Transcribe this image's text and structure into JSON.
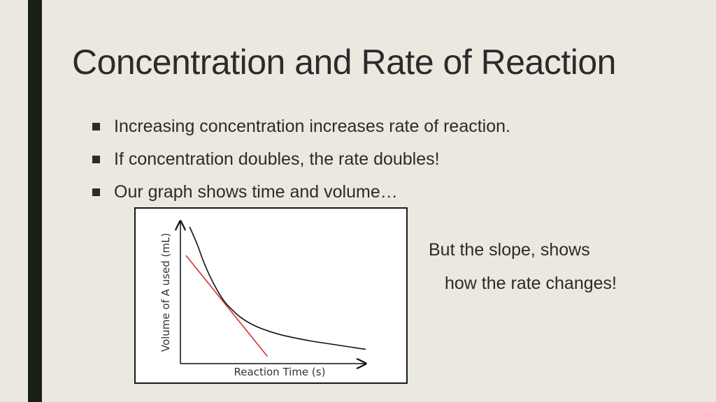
{
  "title": "Concentration and Rate of Reaction",
  "bullets": [
    "Increasing concentration increases rate of reaction.",
    "If concentration doubles, the rate doubles!",
    "Our graph shows time and volume…"
  ],
  "side_note": {
    "line1": "But the slope, shows",
    "line2": "how the rate changes!"
  },
  "colors": {
    "background": "#ebe8e0",
    "left_bar": "#1a1f14",
    "curve": "#111111",
    "tangent": "#d32f2f"
  },
  "chart_data": {
    "type": "line",
    "title": "",
    "xlabel": "Reaction Time (s)",
    "ylabel": "Volume of A used (mL)",
    "xlim": [
      0,
      10
    ],
    "ylim": [
      0,
      10
    ],
    "axis_ticks": false,
    "grid": false,
    "series": [
      {
        "role": "curve",
        "x": [
          0.5,
          0.9,
          1.3,
          1.8,
          2.3,
          2.7,
          3.2,
          3.8,
          4.5,
          5.5,
          7.0,
          8.5,
          10.0
        ],
        "y": [
          9.6,
          8.4,
          7.0,
          5.6,
          4.5,
          3.9,
          3.3,
          2.8,
          2.4,
          2.0,
          1.6,
          1.3,
          1.0
        ]
      },
      {
        "role": "tangent",
        "x": [
          0.3,
          4.7
        ],
        "y": [
          7.6,
          0.5
        ]
      }
    ]
  }
}
